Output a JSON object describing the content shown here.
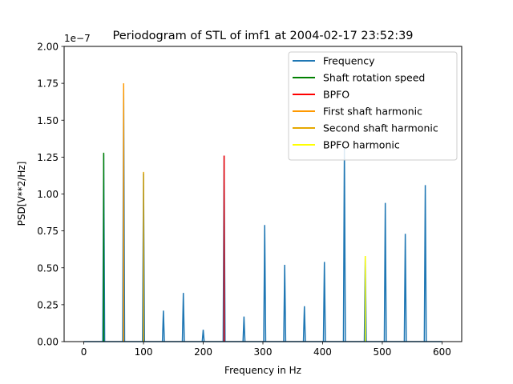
{
  "chart_data": {
    "type": "line",
    "title": "Periodogram of STL of imf1 at 2004-02-17 23:52:39",
    "xlabel": "Frequency in Hz",
    "ylabel": "PSD[V**2/Hz]",
    "y_offset_label": "1e−7",
    "xlim": [
      -33,
      633
    ],
    "ylim": [
      0,
      2.0
    ],
    "x_ticks": [
      0,
      100,
      200,
      300,
      400,
      500,
      600
    ],
    "x_tick_labels": [
      "0",
      "100",
      "200",
      "300",
      "400",
      "500",
      "600"
    ],
    "y_ticks": [
      0,
      0.25,
      0.5,
      0.75,
      1.0,
      1.25,
      1.5,
      1.75,
      2.0
    ],
    "y_tick_labels": [
      "0.00",
      "0.25",
      "0.50",
      "0.75",
      "1.00",
      "1.25",
      "1.50",
      "1.75",
      "2.00"
    ],
    "grid": false,
    "legend_position": "top-right",
    "series": [
      {
        "name": "Frequency",
        "color": "#1f77b4",
        "x_range": [
          0,
          600
        ],
        "peaks": [
          {
            "x": 33.3,
            "y": 1.27
          },
          {
            "x": 66.7,
            "y": 1.74
          },
          {
            "x": 100.0,
            "y": 1.14
          },
          {
            "x": 133.3,
            "y": 0.21
          },
          {
            "x": 166.7,
            "y": 0.33
          },
          {
            "x": 200.0,
            "y": 0.08
          },
          {
            "x": 235.0,
            "y": 1.26
          },
          {
            "x": 268.3,
            "y": 0.17
          },
          {
            "x": 303.0,
            "y": 0.79
          },
          {
            "x": 336.5,
            "y": 0.52
          },
          {
            "x": 369.5,
            "y": 0.24
          },
          {
            "x": 403.0,
            "y": 0.54
          },
          {
            "x": 436.5,
            "y": 1.32
          },
          {
            "x": 471.5,
            "y": 0.58
          },
          {
            "x": 505.0,
            "y": 0.94
          },
          {
            "x": 538.5,
            "y": 0.73
          },
          {
            "x": 572.0,
            "y": 1.06
          }
        ]
      },
      {
        "name": "Shaft rotation speed",
        "color": "#008000",
        "x": 33.3,
        "y": 1.28
      },
      {
        "name": "BPFO",
        "color": "#ff0000",
        "x": 235.0,
        "y": 1.26
      },
      {
        "name": "First shaft harmonic",
        "color": "#ff9900",
        "x": 66.7,
        "y": 1.75
      },
      {
        "name": "Second shaft harmonic",
        "color": "#e6a800",
        "x": 100.0,
        "y": 1.15
      },
      {
        "name": "BPFO harmonic",
        "color": "#ffff00",
        "x": 471.5,
        "y": 0.58
      }
    ]
  }
}
